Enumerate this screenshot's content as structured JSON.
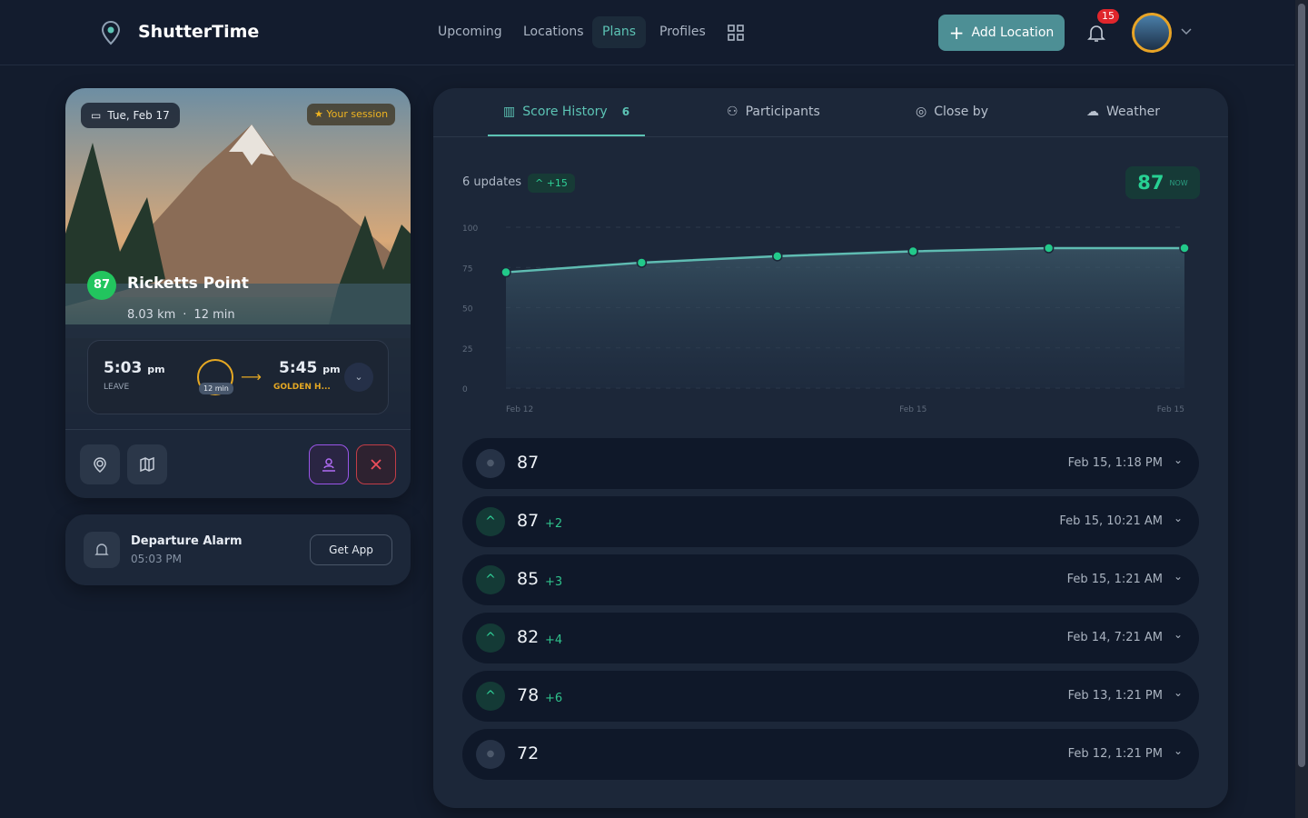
{
  "nav": {
    "brand": "ShutterTime",
    "links": [
      "Upcoming",
      "Locations",
      "Plans",
      "Profiles"
    ],
    "active": "Plans",
    "add_button": "Add Location",
    "notifications": "15"
  },
  "plan_card": {
    "date": "Tue, Feb 17",
    "badge": "Your session",
    "score": 87,
    "name": "Ricketts Point",
    "distance": "8.03 km",
    "duration": "12 min",
    "leave": {
      "time": "5:03",
      "suffix": "pm",
      "label": "LEAVE"
    },
    "travel": "12 min",
    "arrive": {
      "time": "5:45",
      "suffix": "pm",
      "label": "GOLDEN H..."
    }
  },
  "alarm": {
    "title": "Departure Alarm",
    "time": "05:03 PM",
    "button": "Get App"
  },
  "tabs": [
    {
      "label": "Score History",
      "count": 6
    },
    {
      "label": "Participants"
    },
    {
      "label": "Close by"
    },
    {
      "label": "Weather"
    }
  ],
  "summary": {
    "updates": "6 updates",
    "delta": "+15",
    "current": 87,
    "now": "NOW"
  },
  "chart_data": {
    "type": "line",
    "categories": [
      "Feb 12",
      null,
      null,
      "Feb 15",
      null,
      "Feb 15"
    ],
    "values": [
      72,
      78,
      82,
      85,
      87,
      87
    ],
    "color": "#22c98a",
    "line_color": "#5fbcb2",
    "ylim": [
      0,
      100
    ],
    "yticks": [
      0,
      25,
      50,
      75,
      100
    ],
    "grid": true
  },
  "history": [
    {
      "score": 87,
      "date": "Feb 15, 1:18 PM"
    },
    {
      "score": 87,
      "delta": "+2",
      "date": "Feb 15, 10:21 AM"
    },
    {
      "score": 85,
      "delta": "+3",
      "date": "Feb 15, 1:21 AM"
    },
    {
      "score": 82,
      "delta": "+4",
      "date": "Feb 14, 7:21 AM"
    },
    {
      "score": 78,
      "delta": "+6",
      "date": "Feb 13, 1:21 PM"
    },
    {
      "score": 72,
      "date": "Feb 12, 1:21 PM"
    }
  ]
}
